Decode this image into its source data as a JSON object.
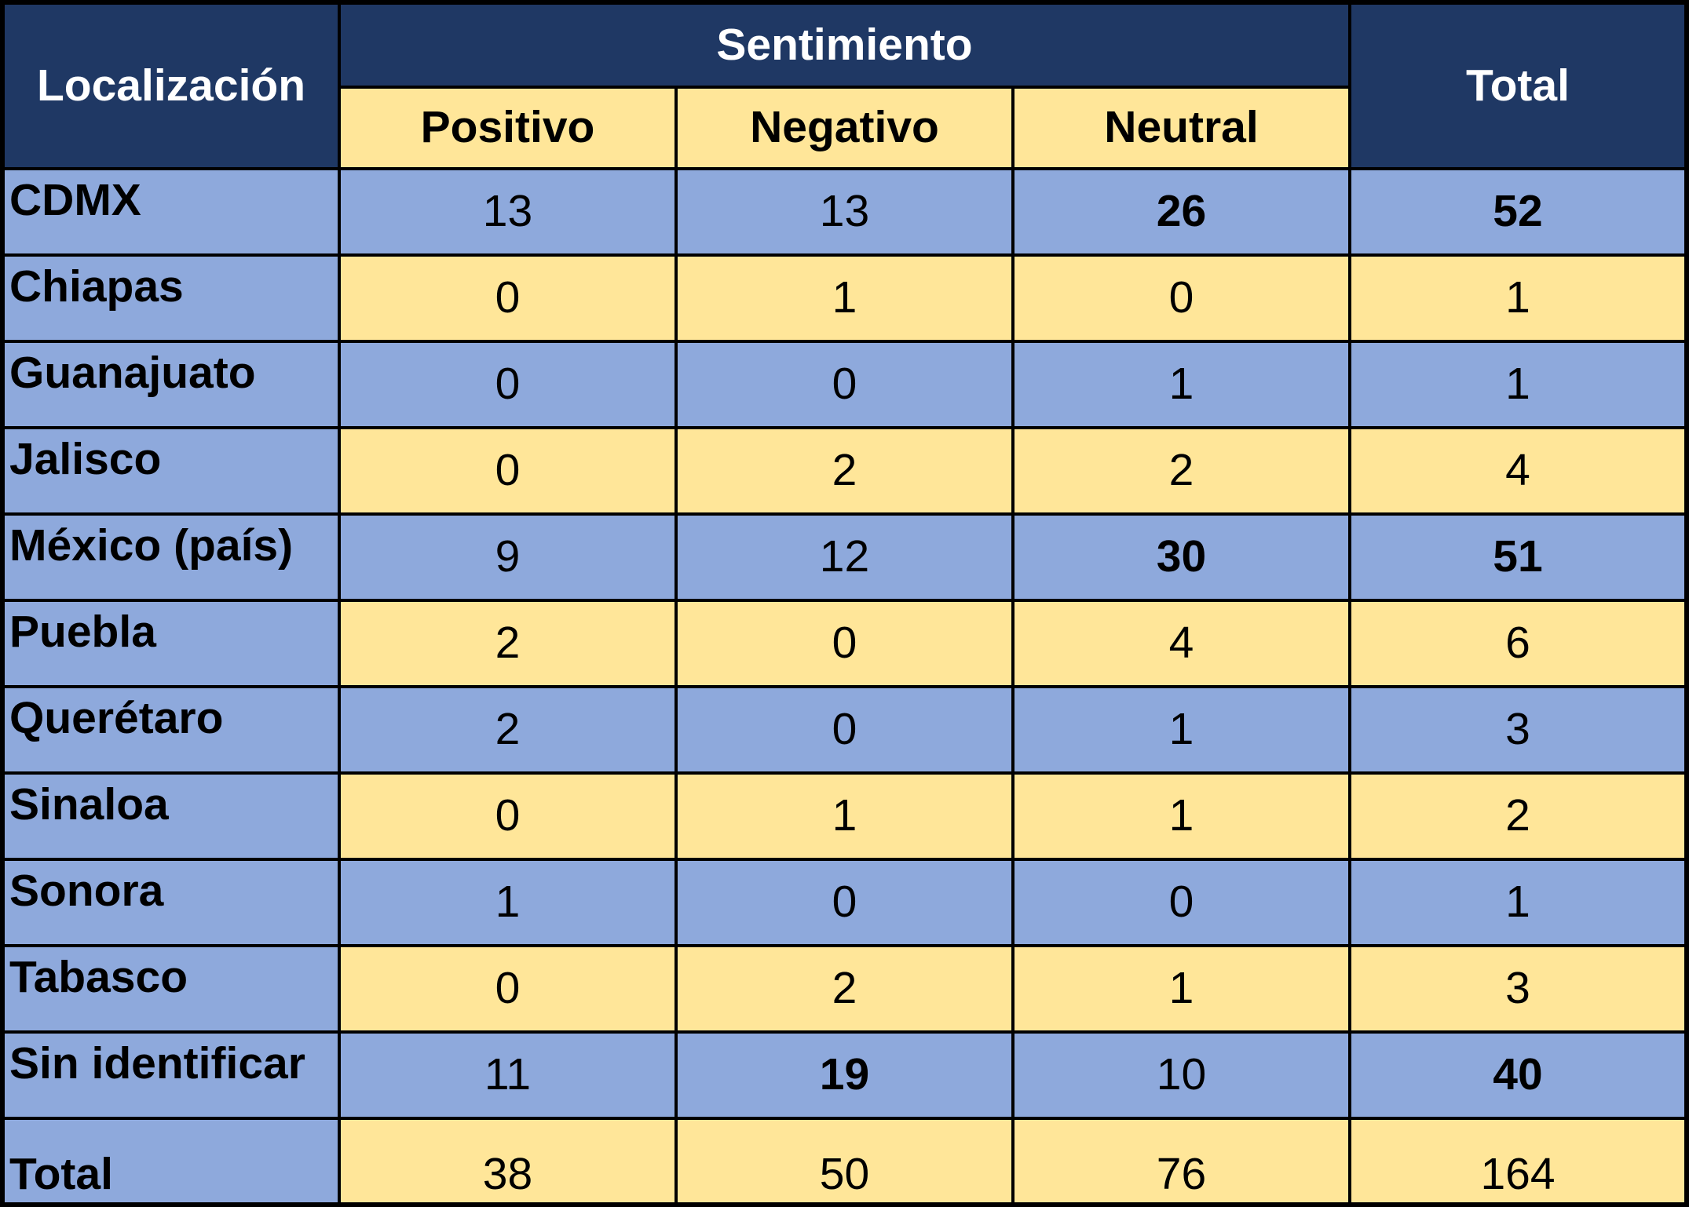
{
  "table": {
    "corner_header": "Localización",
    "group_header": "Sentimiento",
    "columns": [
      "Positivo",
      "Negativo",
      "Neutral"
    ],
    "total_header": "Total",
    "rows": [
      {
        "label": "CDMX",
        "values": [
          "13",
          "13",
          "26",
          "52"
        ],
        "bold_values": [
          2,
          3
        ]
      },
      {
        "label": "Chiapas",
        "values": [
          "0",
          "1",
          "0",
          "1"
        ],
        "bold_values": []
      },
      {
        "label": "Guanajuato",
        "values": [
          "0",
          "0",
          "1",
          "1"
        ],
        "bold_values": []
      },
      {
        "label": "Jalisco",
        "values": [
          "0",
          "2",
          "2",
          "4"
        ],
        "bold_values": []
      },
      {
        "label": "México (país)",
        "values": [
          "9",
          "12",
          "30",
          "51"
        ],
        "bold_values": [
          2,
          3
        ]
      },
      {
        "label": "Puebla",
        "values": [
          "2",
          "0",
          "4",
          "6"
        ],
        "bold_values": []
      },
      {
        "label": "Querétaro",
        "values": [
          "2",
          "0",
          "1",
          "3"
        ],
        "bold_values": []
      },
      {
        "label": "Sinaloa",
        "values": [
          "0",
          "1",
          "1",
          "2"
        ],
        "bold_values": []
      },
      {
        "label": "Sonora",
        "values": [
          "1",
          "0",
          "0",
          "1"
        ],
        "bold_values": []
      },
      {
        "label": "Tabasco",
        "values": [
          "0",
          "2",
          "1",
          "3"
        ],
        "bold_values": []
      },
      {
        "label": "Sin identificar",
        "values": [
          "11",
          "19",
          "10",
          "40"
        ],
        "bold_values": [
          1,
          3
        ]
      },
      {
        "label": "Total",
        "values": [
          "38",
          "50",
          "76",
          "164"
        ],
        "bold_values": [],
        "is_total_row": true
      }
    ]
  },
  "colors": {
    "header_bg": "#1F3864",
    "row_blue": "#8EA9DC",
    "row_gold": "#FFE699",
    "grid": "#000000",
    "header_text": "#FFFFFF",
    "body_text": "#000000"
  }
}
